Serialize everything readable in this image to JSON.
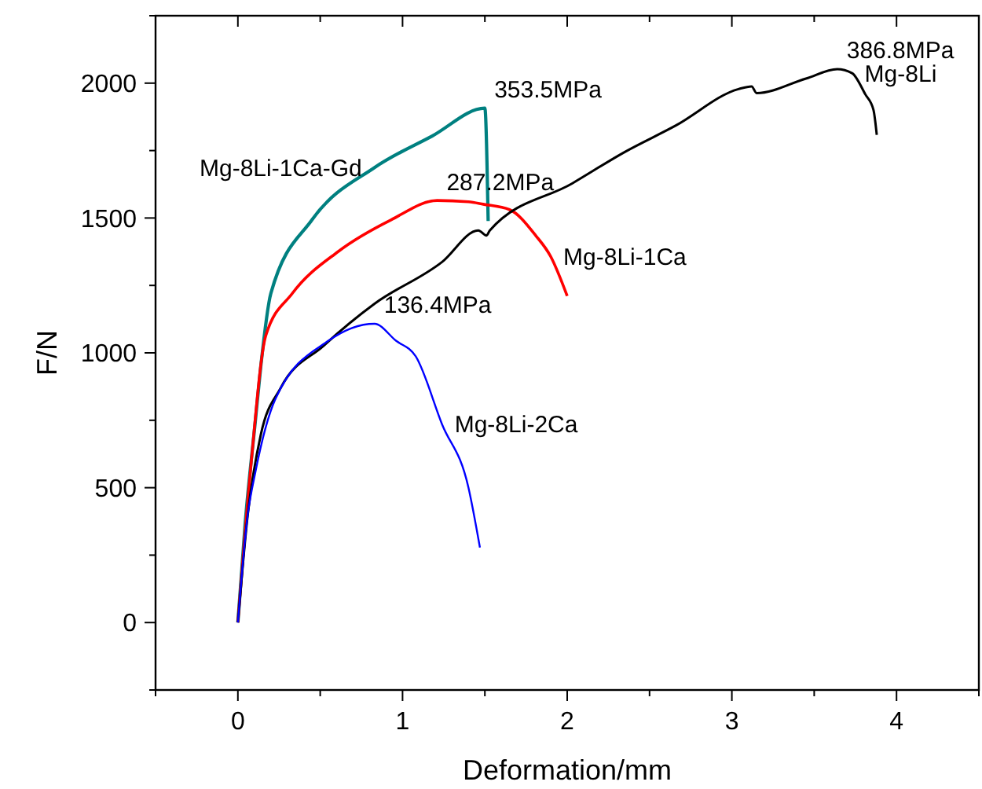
{
  "chart_data": {
    "type": "line",
    "xlabel": "Deformation/mm",
    "ylabel": "F/N",
    "xlim": [
      -0.5,
      4.5
    ],
    "ylim": [
      -250,
      2250
    ],
    "xticks": [
      {
        "value": -0.5,
        "label": null
      },
      0,
      {
        "value": 0.5,
        "label": null
      },
      1,
      {
        "value": 1.5,
        "label": null
      },
      2,
      {
        "value": 2.5,
        "label": null
      },
      3,
      {
        "value": 3.5,
        "label": null
      },
      4,
      {
        "value": 4.5,
        "label": null
      }
    ],
    "yticks": [
      {
        "value": -250,
        "label": null
      },
      0,
      {
        "value": 250,
        "label": null
      },
      500,
      {
        "value": 750,
        "label": null
      },
      1000,
      {
        "value": 1250,
        "label": null
      },
      1500,
      {
        "value": 1750,
        "label": null
      },
      2000,
      {
        "value": 2250,
        "label": null
      }
    ],
    "grid": false,
    "marker": "none",
    "line_style": "solid",
    "series": [
      {
        "color": "#008080",
        "x": [
          0,
          0.044,
          0.107,
          0.139,
          0.2,
          0.45,
          0.83,
          1.18,
          1.5,
          1.52
        ],
        "values": [
          0,
          365,
          753,
          949,
          1220,
          1493,
          1687,
          1804,
          1907,
          1489
        ]
      },
      {
        "color": "#ff0000",
        "x": [
          0,
          0.076,
          0.17,
          0.33,
          0.61,
          0.93,
          1.21,
          1.4,
          1.49,
          1.65,
          1.81,
          1.9,
          2.0
        ],
        "values": [
          0,
          560,
          1065,
          1220,
          1376,
          1493,
          1565,
          1560,
          1551,
          1531,
          1434,
          1357,
          1211
        ]
      },
      {
        "color": "#000000",
        "x": [
          0,
          0.06,
          0.139,
          0.26,
          0.52,
          0.83,
          1.24,
          1.46,
          1.51,
          1.53,
          2.03,
          2.35,
          2.66,
          3.04,
          3.12,
          3.15,
          3.45,
          3.64,
          3.73,
          3.81,
          3.86,
          3.88
        ],
        "values": [
          0,
          400,
          696,
          870,
          1026,
          1182,
          1337,
          1454,
          1435,
          1454,
          1628,
          1745,
          1843,
          1978,
          1988,
          1963,
          2017,
          2052,
          2037,
          1959,
          1901,
          1808
        ]
      },
      {
        "color": "#0000ff",
        "x": [
          0,
          0.06,
          0.107,
          0.23,
          0.55,
          0.83,
          0.96,
          1.08,
          1.24,
          1.4,
          1.47
        ],
        "values": [
          0,
          400,
          560,
          832,
          1045,
          1108,
          1045,
          987,
          735,
          501,
          278
        ]
      }
    ],
    "annotations": [
      {
        "text": "353.5MPa",
        "x": 1.5,
        "y": 1907
      },
      {
        "text": "Mg-8Li-1Ca-Gd",
        "x": 0.83,
        "y": 1687
      },
      {
        "text": "287.2MPa",
        "x": 1.21,
        "y": 1565
      },
      {
        "text": "136.4MPa",
        "x": 0.83,
        "y": 1108
      },
      {
        "text": "386.8MPa",
        "x": 3.64,
        "y": 2052
      },
      {
        "text": "Mg-8Li",
        "x": 3.73,
        "y": 2037
      },
      {
        "text": "Mg-8Li-1Ca",
        "x": 1.9,
        "y": 1357
      },
      {
        "text": "Mg-8Li-2Ca",
        "x": 1.24,
        "y": 735
      }
    ]
  }
}
